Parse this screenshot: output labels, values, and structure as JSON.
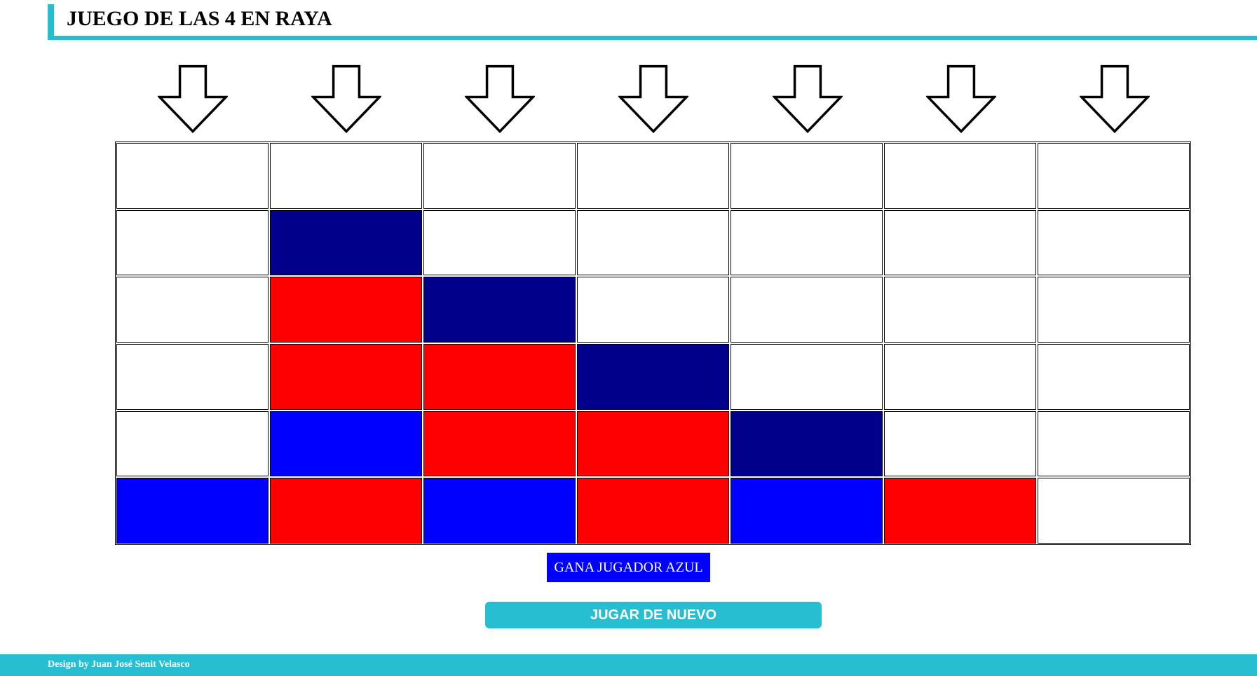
{
  "header": {
    "title": "JUEGO DE LAS 4 EN RAYA"
  },
  "colors": {
    "accent": "#27bed2",
    "empty": "#ffffff",
    "red": "#ff0000",
    "blue": "#0000ff",
    "navy": "#00008b"
  },
  "arrows": {
    "icon": "arrow-down-icon",
    "count": 7
  },
  "board": {
    "columns": 7,
    "rows": 6,
    "cells": [
      [
        "empty",
        "empty",
        "empty",
        "empty",
        "empty",
        "empty",
        "empty"
      ],
      [
        "empty",
        "navy",
        "empty",
        "empty",
        "empty",
        "empty",
        "empty"
      ],
      [
        "empty",
        "red",
        "navy",
        "empty",
        "empty",
        "empty",
        "empty"
      ],
      [
        "empty",
        "red",
        "red",
        "navy",
        "empty",
        "empty",
        "empty"
      ],
      [
        "empty",
        "blue",
        "red",
        "red",
        "navy",
        "empty",
        "empty"
      ],
      [
        "blue",
        "red",
        "blue",
        "red",
        "blue",
        "red",
        "empty"
      ]
    ]
  },
  "status": {
    "text": "GANA JUGADOR AZUL",
    "color": "#0000ff"
  },
  "actions": {
    "play_again_label": "JUGAR DE NUEVO"
  },
  "footer": {
    "credit": "Design by Juan José Senit Velasco"
  }
}
